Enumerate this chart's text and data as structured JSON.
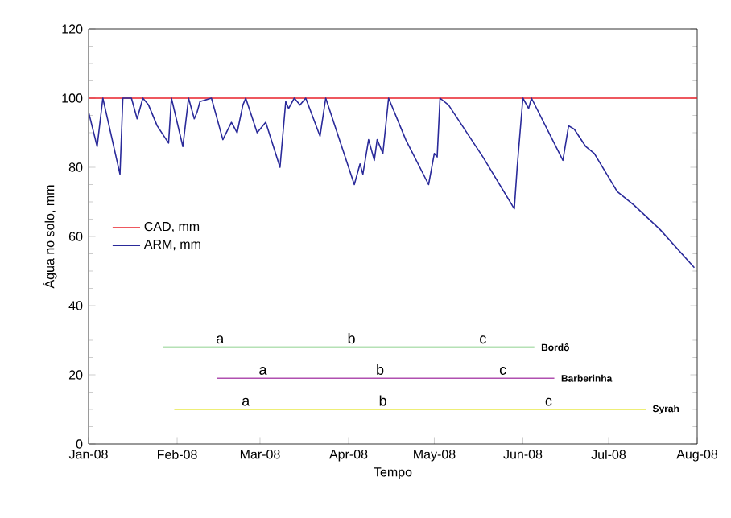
{
  "chart_data": {
    "type": "line",
    "xlabel": "Tempo",
    "ylabel": "Água no solo, mm",
    "xlim": [
      "2008-01-01",
      "2008-08-01"
    ],
    "ylim": [
      0,
      120
    ],
    "xticks": [
      {
        "value": "2008-01-01",
        "label": "Jan-08"
      },
      {
        "value": "2008-02-01",
        "label": "Feb-08"
      },
      {
        "value": "2008-03-01",
        "label": "Mar-08"
      },
      {
        "value": "2008-04-01",
        "label": "Apr-08"
      },
      {
        "value": "2008-05-01",
        "label": "May-08"
      },
      {
        "value": "2008-06-01",
        "label": "Jun-08"
      },
      {
        "value": "2008-07-01",
        "label": "Jul-08"
      },
      {
        "value": "2008-08-01",
        "label": "Aug-08"
      }
    ],
    "yticks": [
      0,
      20,
      40,
      60,
      80,
      100,
      120
    ],
    "legend": "left",
    "series": [
      {
        "name": "CAD, mm",
        "color": "#e8202a",
        "x": [
          "2008-01-01",
          "2008-08-01"
        ],
        "values": [
          100,
          100
        ]
      },
      {
        "name": "ARM, mm",
        "color": "#2a2a9a",
        "x": [
          "2008-01-01",
          "2008-01-04",
          "2008-01-06",
          "2008-01-12",
          "2008-01-13",
          "2008-01-16",
          "2008-01-18",
          "2008-01-20",
          "2008-01-22",
          "2008-01-25",
          "2008-01-29",
          "2008-01-30",
          "2008-02-03",
          "2008-02-05",
          "2008-02-07",
          "2008-02-08",
          "2008-02-09",
          "2008-02-13",
          "2008-02-17",
          "2008-02-20",
          "2008-02-22",
          "2008-02-24",
          "2008-02-25",
          "2008-02-29",
          "2008-03-03",
          "2008-03-08",
          "2008-03-10",
          "2008-03-11",
          "2008-03-13",
          "2008-03-15",
          "2008-03-17",
          "2008-03-22",
          "2008-03-24",
          "2008-04-03",
          "2008-04-05",
          "2008-04-06",
          "2008-04-08",
          "2008-04-10",
          "2008-04-11",
          "2008-04-13",
          "2008-04-15",
          "2008-04-21",
          "2008-04-29",
          "2008-05-01",
          "2008-05-02",
          "2008-05-03",
          "2008-05-06",
          "2008-05-18",
          "2008-05-29",
          "2008-05-30",
          "2008-06-01",
          "2008-06-03",
          "2008-06-04",
          "2008-06-15",
          "2008-06-17",
          "2008-06-19",
          "2008-06-23",
          "2008-06-26",
          "2008-07-04",
          "2008-07-10",
          "2008-07-19",
          "2008-07-31"
        ],
        "values": [
          96,
          86,
          100,
          78,
          100,
          100,
          94,
          100,
          98,
          92,
          87,
          100,
          86,
          100,
          94,
          96,
          99,
          100,
          88,
          93,
          90,
          98,
          100,
          90,
          93,
          80,
          99,
          97,
          100,
          98,
          100,
          89,
          100,
          75,
          81,
          78,
          88,
          82,
          88,
          84,
          100,
          88,
          75,
          84,
          83,
          100,
          98,
          83,
          68,
          80,
          100,
          97,
          100,
          82,
          92,
          91,
          86,
          84,
          73,
          69,
          62,
          51
        ]
      },
      {
        "name": "Bordô",
        "color": "#6cc46c",
        "x": [
          "2008-01-27",
          "2008-03-09",
          "2008-05-01",
          "2008-06-05"
        ],
        "values": [
          28,
          28,
          28,
          28
        ]
      },
      {
        "name": "Barberinha",
        "color": "#b050b0",
        "x": [
          "2008-02-15",
          "2008-03-20",
          "2008-05-13",
          "2008-06-12"
        ],
        "values": [
          19,
          19,
          19,
          19
        ]
      },
      {
        "name": "Syrah",
        "color": "#e8e84a",
        "x": [
          "2008-01-31",
          "2008-07-14"
        ],
        "values": [
          10,
          10
        ]
      }
    ],
    "annotations": [
      {
        "text": "a",
        "x": "2008-02-16",
        "y": 28
      },
      {
        "text": "b",
        "x": "2008-04-02",
        "y": 28
      },
      {
        "text": "c",
        "x": "2008-05-18",
        "y": 28
      },
      {
        "text": "a",
        "x": "2008-03-02",
        "y": 19
      },
      {
        "text": "b",
        "x": "2008-04-12",
        "y": 19
      },
      {
        "text": "c",
        "x": "2008-05-25",
        "y": 19
      },
      {
        "text": "a",
        "x": "2008-02-25",
        "y": 10
      },
      {
        "text": "b",
        "x": "2008-04-13",
        "y": 10
      },
      {
        "text": "c",
        "x": "2008-06-10",
        "y": 10
      }
    ]
  }
}
